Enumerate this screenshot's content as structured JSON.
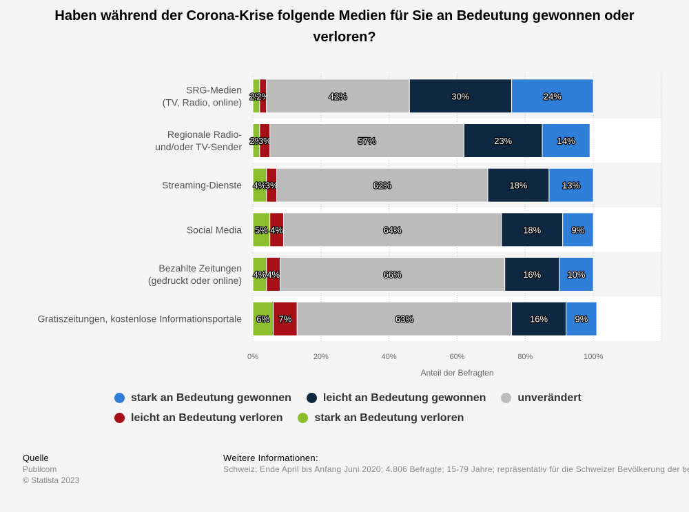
{
  "title": "Haben während der Corona-Krise folgende Medien für Sie an Bedeutung gewonnen oder verloren?",
  "chart_data": {
    "type": "bar",
    "orientation": "horizontal",
    "stacked": true,
    "categories": [
      "SRG-Medien\n(TV, Radio, online)",
      "Regionale Radio-\nund/oder TV-Sender",
      "Streaming-Dienste",
      "Social Media",
      "Bezahlte Zeitungen\n(gedruckt oder online)",
      "Gratiszeitungen, kostenlose Informationsportale"
    ],
    "series": [
      {
        "name": "stark an Bedeutung verloren",
        "color": "#8dbe2d",
        "values": [
          2,
          2,
          4,
          5,
          4,
          6
        ]
      },
      {
        "name": "leicht an Bedeutung verloren",
        "color": "#a50f15",
        "values": [
          2,
          3,
          3,
          4,
          4,
          7
        ]
      },
      {
        "name": "unverändert",
        "color": "#bbbbbb",
        "values": [
          42,
          57,
          62,
          64,
          66,
          63
        ]
      },
      {
        "name": "leicht an Bedeutung gewonnen",
        "color": "#0e2841",
        "values": [
          30,
          23,
          18,
          18,
          16,
          16
        ]
      },
      {
        "name": "stark an Bedeutung gewonnen",
        "color": "#2f7ed8",
        "values": [
          24,
          14,
          13,
          9,
          10,
          9
        ]
      }
    ],
    "xlabel": "Anteil der Befragten",
    "ylabel": "",
    "xlim": [
      0,
      120
    ],
    "xticks": [
      "0%",
      "20%",
      "40%",
      "60%",
      "80%",
      "100%"
    ],
    "grid": true,
    "legend_position": "bottom"
  },
  "legend": {
    "row1": [
      {
        "label": "stark an Bedeutung gewonnen",
        "color": "#2f7ed8"
      },
      {
        "label": "leicht an Bedeutung gewonnen",
        "color": "#0e2841"
      },
      {
        "label": "unverändert",
        "color": "#bbbbbb"
      }
    ],
    "row2": [
      {
        "label": "leicht an Bedeutung verloren",
        "color": "#a50f15"
      },
      {
        "label": "stark an Bedeutung verloren",
        "color": "#8dbe2d"
      }
    ]
  },
  "footer": {
    "source_label": "Quelle",
    "source": "Publicom",
    "copyright": "© Statista 2023",
    "info_label": "Weitere Informationen:",
    "info": "Schweiz; Ende April bis Anfang Juni 2020; 4.806 Befragte; 15-79 Jahre; repräsentativ für die Schweizer Bevölkerung der beiden grossen Sprachregionen"
  }
}
